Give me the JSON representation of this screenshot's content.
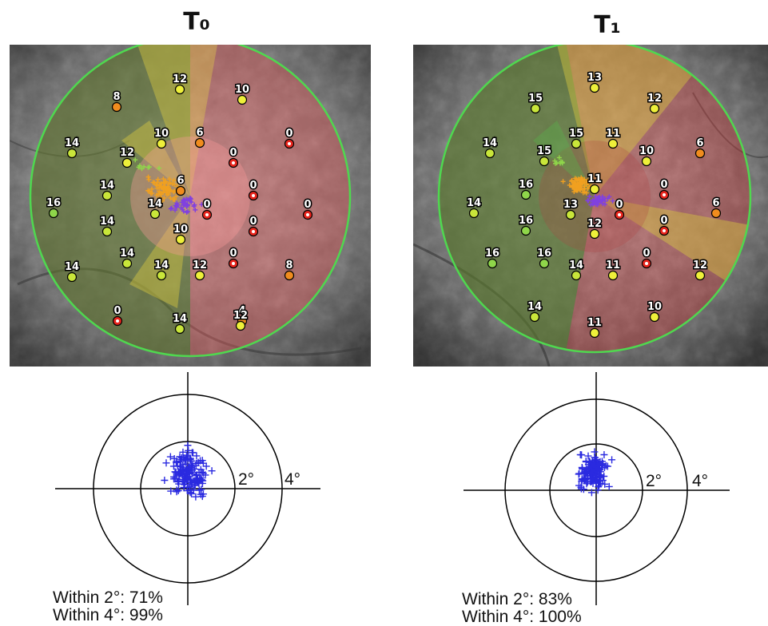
{
  "panels": [
    {
      "title": "T₀",
      "stats": [
        "Within 2°: 71%",
        "Within 4°: 99%"
      ],
      "ring_labels": [
        "2°",
        "4°"
      ],
      "stimuli": [
        {
          "v": "12",
          "c": "yellow"
        },
        {
          "v": "8",
          "c": "orange"
        },
        {
          "v": "10",
          "c": "yellow"
        },
        {
          "v": "14",
          "c": "yellowgreen"
        },
        {
          "v": "10",
          "c": "yellow"
        },
        {
          "v": "6",
          "c": "orange"
        },
        {
          "v": "0",
          "c": "red"
        },
        {
          "v": "0",
          "c": "red"
        },
        {
          "v": "12",
          "c": "yellow"
        },
        {
          "v": "14",
          "c": "yellowgreen"
        },
        {
          "v": "6",
          "c": "orange"
        },
        {
          "v": "0",
          "c": "red"
        },
        {
          "v": "16",
          "c": "green"
        },
        {
          "v": "14",
          "c": "yellowgreen"
        },
        {
          "v": "0",
          "c": "red"
        },
        {
          "v": "0",
          "c": "red"
        },
        {
          "v": "14",
          "c": "yellowgreen"
        },
        {
          "v": "10",
          "c": "yellow"
        },
        {
          "v": "0",
          "c": "red"
        },
        {
          "v": "14",
          "c": "yellowgreen"
        },
        {
          "v": "0",
          "c": "red"
        },
        {
          "v": "14",
          "c": "yellowgreen"
        },
        {
          "v": "14",
          "c": "yellowgreen"
        },
        {
          "v": "12",
          "c": "yellow"
        },
        {
          "v": "8",
          "c": "orange"
        },
        {
          "v": "0",
          "c": "red"
        },
        {
          "v": "14",
          "c": "yellowgreen"
        },
        {
          "v": "4",
          "c": "orange"
        },
        {
          "v": "12",
          "c": "yellow"
        }
      ]
    },
    {
      "title": "T₁",
      "stats": [
        "Within 2°: 83%",
        "Within 4°: 100%"
      ],
      "ring_labels": [
        "2°",
        "4°"
      ],
      "stimuli": [
        {
          "v": "13",
          "c": "yellow"
        },
        {
          "v": "15",
          "c": "yellowgreen"
        },
        {
          "v": "12",
          "c": "yellow"
        },
        {
          "v": "14",
          "c": "yellowgreen"
        },
        {
          "v": "15",
          "c": "yellowgreen"
        },
        {
          "v": "11",
          "c": "yellow"
        },
        {
          "v": "6",
          "c": "orange"
        },
        {
          "v": "15",
          "c": "yellowgreen"
        },
        {
          "v": "10",
          "c": "yellow"
        },
        {
          "v": "16",
          "c": "green"
        },
        {
          "v": "11",
          "c": "yellow"
        },
        {
          "v": "0",
          "c": "red"
        },
        {
          "v": "14",
          "c": "yellowgreen"
        },
        {
          "v": "13",
          "c": "yellowgreen"
        },
        {
          "v": "0",
          "c": "red"
        },
        {
          "v": "6",
          "c": "orange"
        },
        {
          "v": "16",
          "c": "green"
        },
        {
          "v": "12",
          "c": "yellow"
        },
        {
          "v": "0",
          "c": "red"
        },
        {
          "v": "16",
          "c": "green"
        },
        {
          "v": "16",
          "c": "green"
        },
        {
          "v": "0",
          "c": "red"
        },
        {
          "v": "12",
          "c": "yellow"
        },
        {
          "v": "14",
          "c": "yellowgreen"
        },
        {
          "v": "11",
          "c": "yellow"
        },
        {
          "v": "14",
          "c": "yellowgreen"
        },
        {
          "v": "10",
          "c": "yellow"
        },
        {
          "v": "11",
          "c": "yellow"
        }
      ]
    }
  ],
  "colors": {
    "green": "#8fd64a",
    "yellowgreen": "#c9e63a",
    "yellow": "#eef03a",
    "orange": "#f08c1e",
    "red": "#e8241c",
    "boundary": "#4fd84f",
    "fixation": "#2a2ae0",
    "fix_early": "#f0a020",
    "fix_late": "#8040e0"
  }
}
